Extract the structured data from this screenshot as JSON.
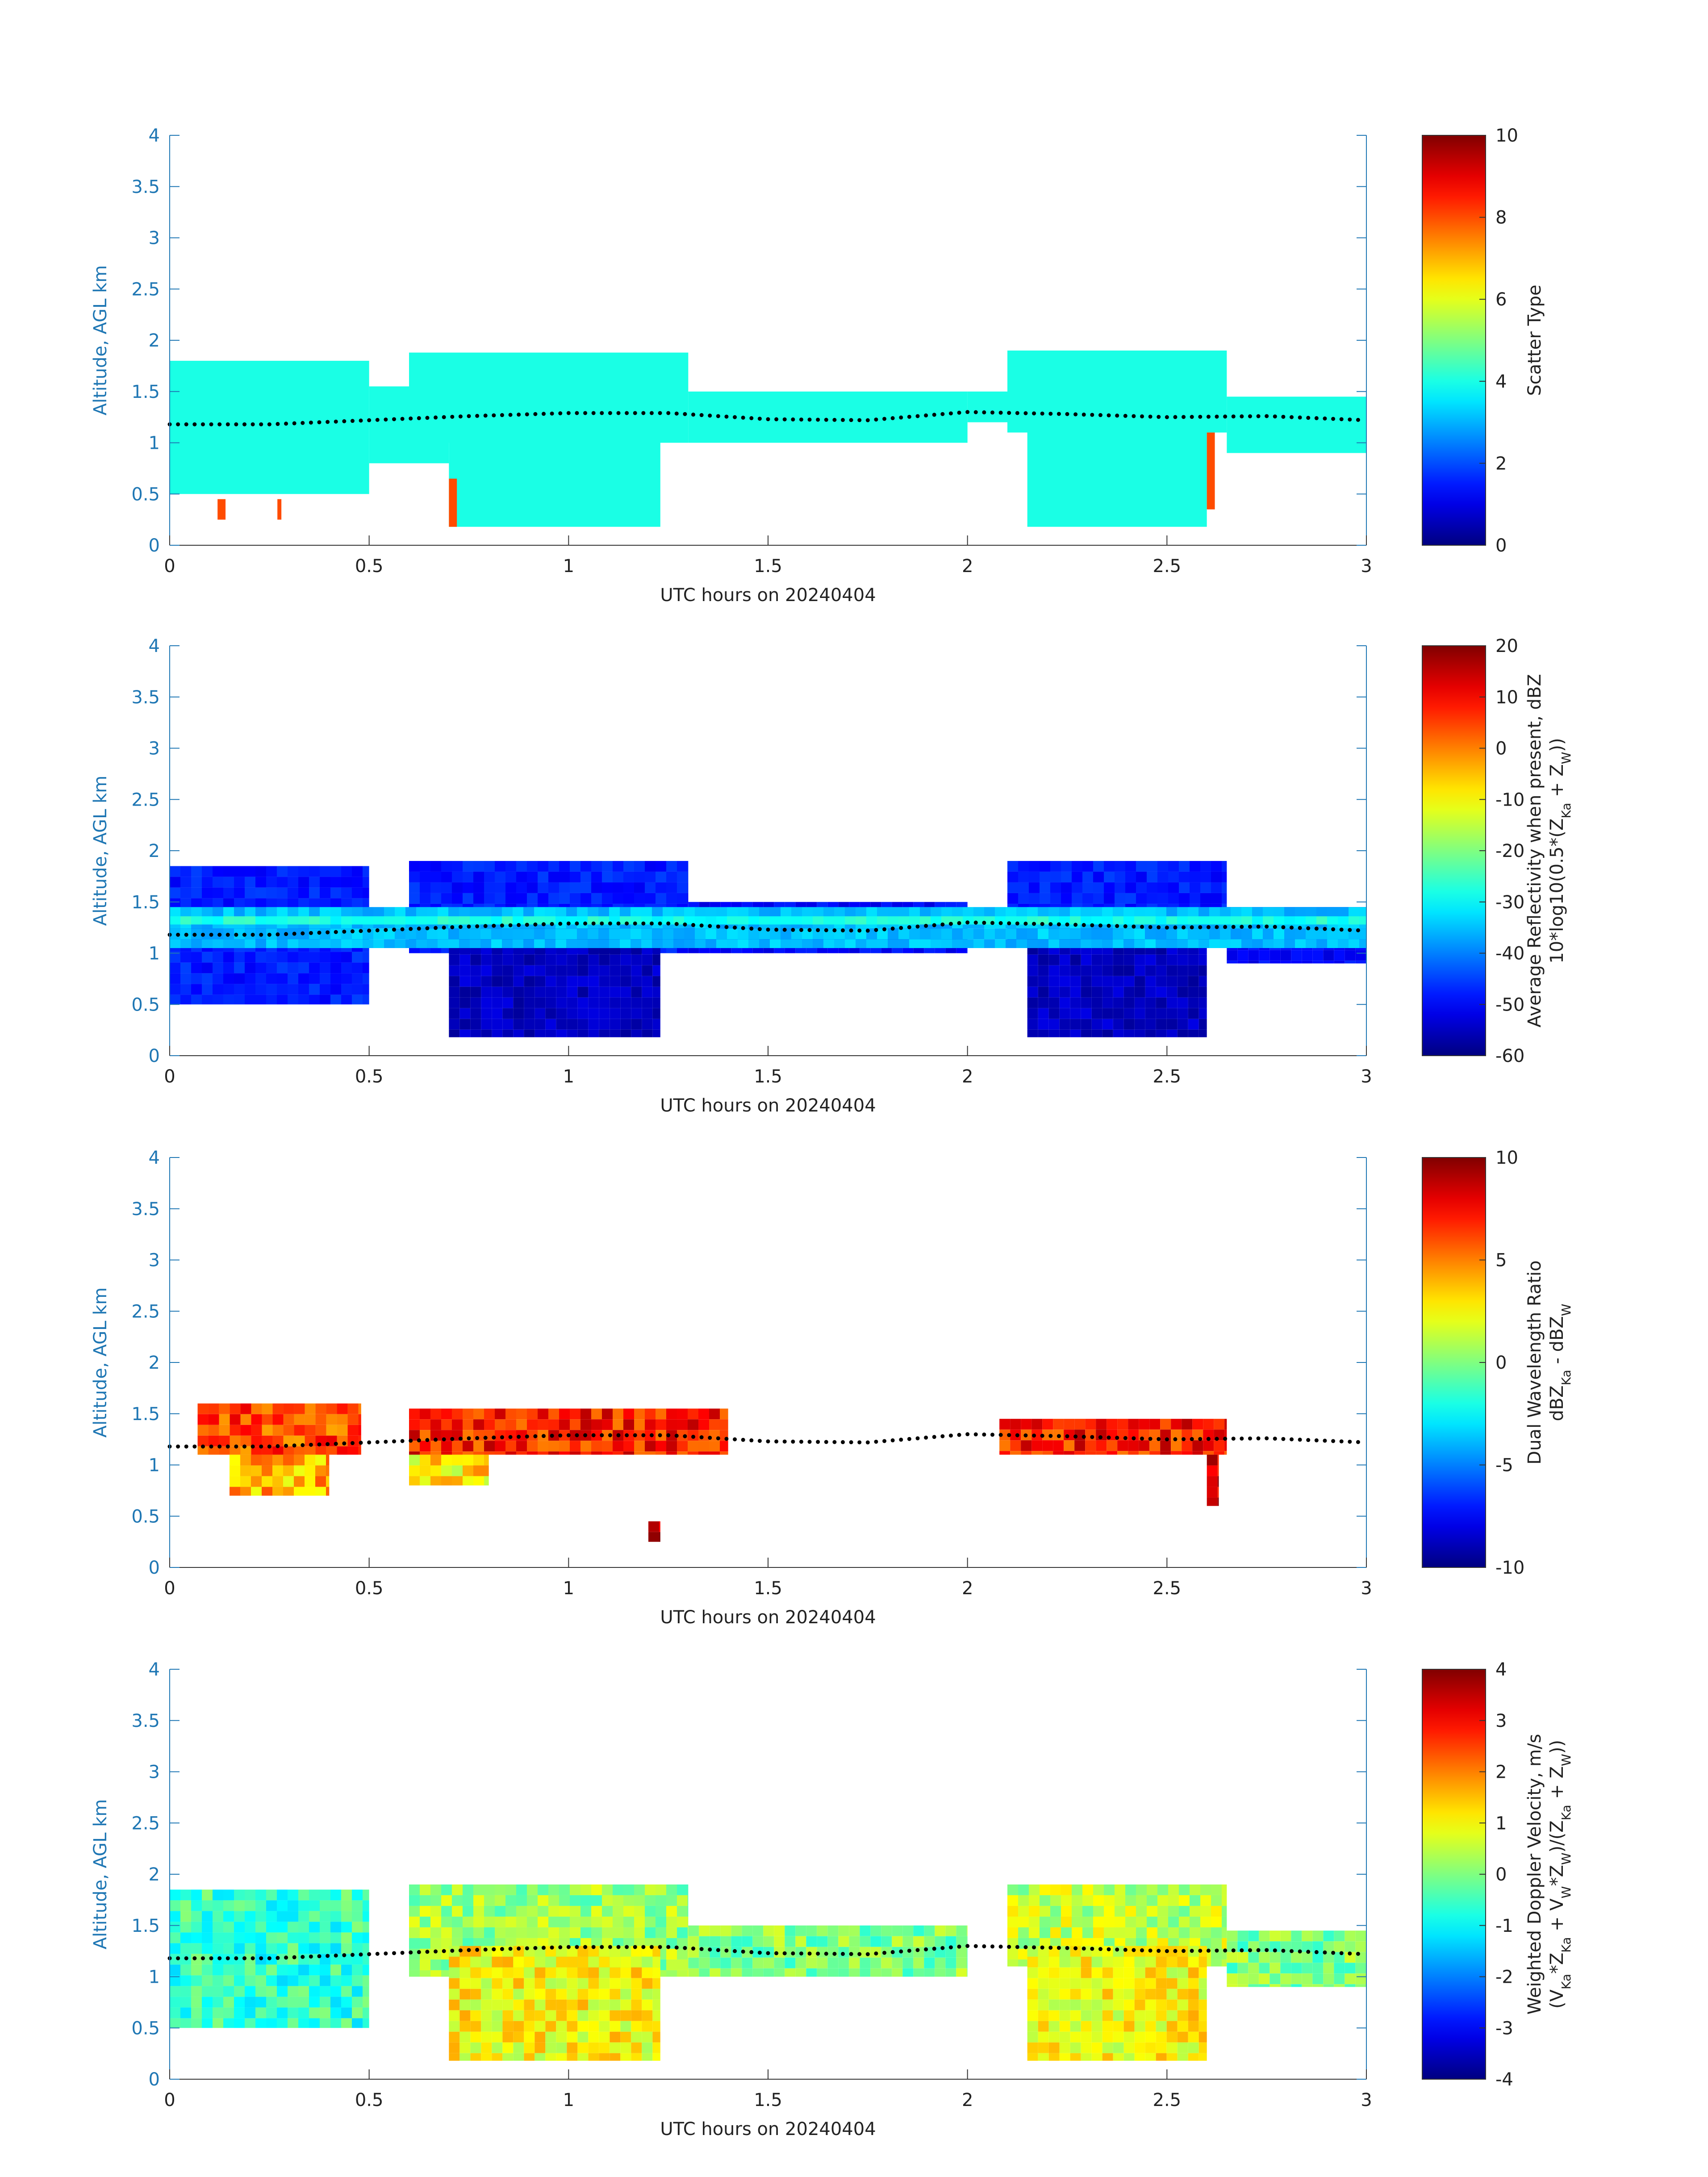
{
  "figure": {
    "xlabel": "UTC hours on 20240404",
    "ylabel": "Altitude, AGL km"
  },
  "chart_data": [
    {
      "type": "heatmap",
      "xlabel": "UTC hours on 20240404",
      "ylabel": "Altitude, AGL km",
      "xlim": [
        0,
        3
      ],
      "ylim": [
        0,
        4
      ],
      "xticks": [
        "0",
        "0.5",
        "1",
        "1.5",
        "2",
        "2.5",
        "3"
      ],
      "yticks": [
        "0",
        "0.5",
        "1",
        "1.5",
        "2",
        "2.5",
        "3",
        "3.5",
        "4"
      ],
      "colorbar": {
        "label_lines": [
          "Scatter Type"
        ],
        "min": 0,
        "max": 10,
        "ticks": [
          "0",
          "2",
          "4",
          "6",
          "8",
          "10"
        ]
      },
      "regions": [
        {
          "x0": 0.0,
          "x1": 0.5,
          "y0": 0.5,
          "y1": 1.8,
          "value": 4
        },
        {
          "x0": 0.5,
          "x1": 0.7,
          "y0": 0.8,
          "y1": 1.55,
          "value": 4
        },
        {
          "x0": 0.6,
          "x1": 1.3,
          "y0": 1.0,
          "y1": 1.88,
          "value": 4
        },
        {
          "x0": 0.7,
          "x1": 1.23,
          "y0": 0.18,
          "y1": 1.3,
          "value": 4
        },
        {
          "x0": 1.3,
          "x1": 2.0,
          "y0": 1.0,
          "y1": 1.5,
          "value": 4
        },
        {
          "x0": 2.0,
          "x1": 2.1,
          "y0": 1.2,
          "y1": 1.5,
          "value": 4
        },
        {
          "x0": 2.1,
          "x1": 2.65,
          "y0": 1.1,
          "y1": 1.9,
          "value": 4
        },
        {
          "x0": 2.15,
          "x1": 2.6,
          "y0": 0.18,
          "y1": 1.3,
          "value": 4
        },
        {
          "x0": 2.65,
          "x1": 3.0,
          "y0": 0.9,
          "y1": 1.45,
          "value": 4
        },
        {
          "x0": 0.12,
          "x1": 0.14,
          "y0": 0.25,
          "y1": 0.45,
          "value": 8
        },
        {
          "x0": 0.27,
          "x1": 0.28,
          "y0": 0.25,
          "y1": 0.45,
          "value": 8
        },
        {
          "x0": 0.7,
          "x1": 0.72,
          "y0": 0.18,
          "y1": 0.65,
          "value": 8
        },
        {
          "x0": 2.6,
          "x1": 2.62,
          "y0": 0.35,
          "y1": 1.1,
          "value": 8
        }
      ],
      "boundary_layer_top": {
        "x": [
          0,
          0.25,
          0.5,
          0.75,
          1.0,
          1.25,
          1.5,
          1.75,
          2.0,
          2.25,
          2.5,
          2.75,
          3.0
        ],
        "y": [
          1.18,
          1.18,
          1.22,
          1.26,
          1.29,
          1.29,
          1.23,
          1.22,
          1.3,
          1.28,
          1.25,
          1.26,
          1.22
        ]
      }
    },
    {
      "type": "heatmap",
      "xlabel": "UTC hours on 20240404",
      "ylabel": "Altitude, AGL km",
      "xlim": [
        0,
        3
      ],
      "ylim": [
        0,
        4
      ],
      "xticks": [
        "0",
        "0.5",
        "1",
        "1.5",
        "2",
        "2.5",
        "3"
      ],
      "yticks": [
        "0",
        "0.5",
        "1",
        "1.5",
        "2",
        "2.5",
        "3",
        "3.5",
        "4"
      ],
      "colorbar": {
        "label_lines": [
          "Average Reflectivity when present, dBZ",
          "10*log10(0.5*(Z_Ka + Z_W))"
        ],
        "min": -60,
        "max": 20,
        "ticks": [
          "-60",
          "-50",
          "-40",
          "-30",
          "-20",
          "-10",
          "0",
          "10",
          "20"
        ]
      },
      "regions": [
        {
          "x0": 0.0,
          "x1": 0.5,
          "y0": 0.5,
          "y1": 1.85,
          "value": -48
        },
        {
          "x0": 0.6,
          "x1": 1.3,
          "y0": 1.0,
          "y1": 1.9,
          "value": -48
        },
        {
          "x0": 0.7,
          "x1": 1.23,
          "y0": 0.18,
          "y1": 1.3,
          "value": -55
        },
        {
          "x0": 1.3,
          "x1": 2.0,
          "y0": 1.0,
          "y1": 1.5,
          "value": -50
        },
        {
          "x0": 2.1,
          "x1": 2.65,
          "y0": 1.1,
          "y1": 1.9,
          "value": -48
        },
        {
          "x0": 2.15,
          "x1": 2.6,
          "y0": 0.18,
          "y1": 1.3,
          "value": -55
        },
        {
          "x0": 2.65,
          "x1": 3.0,
          "y0": 0.9,
          "y1": 1.45,
          "value": -50
        },
        {
          "x0": 0.0,
          "x1": 3.0,
          "y0": 1.05,
          "y1": 1.45,
          "value": -35
        },
        {
          "x0": 0.0,
          "x1": 3.0,
          "y0": 1.28,
          "y1": 1.36,
          "value": -28
        }
      ],
      "boundary_layer_top": {
        "x": [
          0,
          0.25,
          0.5,
          0.75,
          1.0,
          1.25,
          1.5,
          1.75,
          2.0,
          2.25,
          2.5,
          2.75,
          3.0
        ],
        "y": [
          1.18,
          1.18,
          1.22,
          1.26,
          1.29,
          1.29,
          1.23,
          1.22,
          1.3,
          1.28,
          1.25,
          1.26,
          1.22
        ]
      }
    },
    {
      "type": "heatmap",
      "xlabel": "UTC hours on 20240404",
      "ylabel": "Altitude, AGL km",
      "xlim": [
        0,
        3
      ],
      "ylim": [
        0,
        4
      ],
      "xticks": [
        "0",
        "0.5",
        "1",
        "1.5",
        "2",
        "2.5",
        "3"
      ],
      "yticks": [
        "0",
        "0.5",
        "1",
        "1.5",
        "2",
        "2.5",
        "3",
        "3.5",
        "4"
      ],
      "colorbar": {
        "label_lines": [
          "Dual Wavelength Ratio",
          "dBZ_Ka - dBZ_W"
        ],
        "min": -10,
        "max": 10,
        "ticks": [
          "-10",
          "-5",
          "0",
          "5",
          "10"
        ]
      },
      "regions": [
        {
          "x0": 0.07,
          "x1": 0.48,
          "y0": 1.1,
          "y1": 1.6,
          "value": 6
        },
        {
          "x0": 0.15,
          "x1": 0.4,
          "y0": 0.7,
          "y1": 1.1,
          "value": 4
        },
        {
          "x0": 0.6,
          "x1": 1.4,
          "y0": 1.1,
          "y1": 1.55,
          "value": 7
        },
        {
          "x0": 0.6,
          "x1": 0.8,
          "y0": 0.8,
          "y1": 1.1,
          "value": 3
        },
        {
          "x0": 1.2,
          "x1": 1.23,
          "y0": 0.25,
          "y1": 0.45,
          "value": 9
        },
        {
          "x0": 2.08,
          "x1": 2.65,
          "y0": 1.1,
          "y1": 1.45,
          "value": 7
        },
        {
          "x0": 2.6,
          "x1": 2.63,
          "y0": 0.6,
          "y1": 1.1,
          "value": 8
        }
      ],
      "boundary_layer_top": {
        "x": [
          0,
          0.25,
          0.5,
          0.75,
          1.0,
          1.25,
          1.5,
          1.75,
          2.0,
          2.25,
          2.5,
          2.75,
          3.0
        ],
        "y": [
          1.18,
          1.18,
          1.22,
          1.26,
          1.29,
          1.29,
          1.23,
          1.22,
          1.3,
          1.28,
          1.25,
          1.26,
          1.22
        ]
      }
    },
    {
      "type": "heatmap",
      "xlabel": "UTC hours on 20240404",
      "ylabel": "Altitude, AGL km",
      "xlim": [
        0,
        3
      ],
      "ylim": [
        0,
        4
      ],
      "xticks": [
        "0",
        "0.5",
        "1",
        "1.5",
        "2",
        "2.5",
        "3"
      ],
      "yticks": [
        "0",
        "0.5",
        "1",
        "1.5",
        "2",
        "2.5",
        "3",
        "3.5",
        "4"
      ],
      "colorbar": {
        "label_lines": [
          "Weighted Doppler Velocity, m/s",
          "(V_Ka*Z_Ka + V_W*Z_W)/(Z_Ka + Z_W))"
        ],
        "min": -4,
        "max": 4,
        "ticks": [
          "-4",
          "-3",
          "-2",
          "-1",
          "0",
          "1",
          "2",
          "3",
          "4"
        ]
      },
      "regions": [
        {
          "x0": 0.0,
          "x1": 0.5,
          "y0": 0.5,
          "y1": 1.85,
          "value": -0.6
        },
        {
          "x0": 0.6,
          "x1": 1.3,
          "y0": 1.0,
          "y1": 1.9,
          "value": 0.2
        },
        {
          "x0": 0.7,
          "x1": 1.23,
          "y0": 0.18,
          "y1": 1.3,
          "value": 1.0
        },
        {
          "x0": 1.3,
          "x1": 2.0,
          "y0": 1.0,
          "y1": 1.5,
          "value": 0.0
        },
        {
          "x0": 2.1,
          "x1": 2.65,
          "y0": 1.1,
          "y1": 1.9,
          "value": 0.5
        },
        {
          "x0": 2.15,
          "x1": 2.6,
          "y0": 0.18,
          "y1": 1.3,
          "value": 1.0
        },
        {
          "x0": 2.65,
          "x1": 3.0,
          "y0": 0.9,
          "y1": 1.45,
          "value": 0.0
        }
      ],
      "boundary_layer_top": {
        "x": [
          0,
          0.25,
          0.5,
          0.75,
          1.0,
          1.25,
          1.5,
          1.75,
          2.0,
          2.25,
          2.5,
          2.75,
          3.0
        ],
        "y": [
          1.18,
          1.18,
          1.22,
          1.26,
          1.29,
          1.29,
          1.23,
          1.22,
          1.3,
          1.28,
          1.25,
          1.26,
          1.22
        ]
      }
    }
  ]
}
